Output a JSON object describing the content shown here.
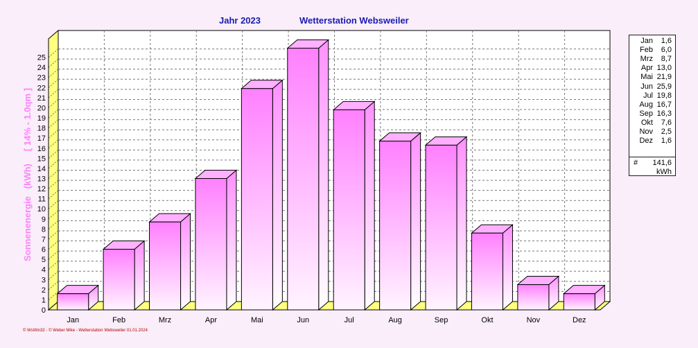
{
  "header": {
    "year_label": "Jahr  2023",
    "station": "Wetterstation Websweiler"
  },
  "chart_data": {
    "type": "bar",
    "title": "Jahr  2023   Wetterstation Websweiler",
    "ylabel": "Sonnenenergie   (kWh)     [ 14% - 1.0qm ]",
    "categories": [
      "Jan",
      "Feb",
      "Mrz",
      "Apr",
      "Mai",
      "Jun",
      "Jul",
      "Aug",
      "Sep",
      "Okt",
      "Nov",
      "Dez"
    ],
    "values": [
      1.6,
      6.0,
      8.7,
      13.0,
      21.9,
      25.9,
      19.8,
      16.7,
      16.3,
      7.6,
      2.5,
      1.6
    ],
    "ylim": [
      0,
      26
    ],
    "yticks": [
      "0",
      "1",
      "2",
      "3",
      "4",
      "5",
      "6",
      "7",
      "8",
      "9",
      "10",
      "11",
      "12",
      "13",
      "14",
      "15",
      "16",
      "17",
      "18",
      "19",
      "20",
      "21",
      "22",
      "23",
      "24",
      "25"
    ],
    "grid": true,
    "bar_color": "#ff80ff",
    "wall_color": "#ffff80"
  },
  "legend": {
    "rows": [
      {
        "month": "Jan",
        "value": "1,6"
      },
      {
        "month": "Feb",
        "value": "6,0"
      },
      {
        "month": "Mrz",
        "value": "8,7"
      },
      {
        "month": "Apr",
        "value": "13,0"
      },
      {
        "month": "Mai",
        "value": "21,9"
      },
      {
        "month": "Jun",
        "value": "25,9"
      },
      {
        "month": "Jul",
        "value": "19,8"
      },
      {
        "month": "Aug",
        "value": "16,7"
      },
      {
        "month": "Sep",
        "value": "16,3"
      },
      {
        "month": "Okt",
        "value": "7,6"
      },
      {
        "month": "Nov",
        "value": "2,5"
      },
      {
        "month": "Dez",
        "value": "1,6"
      }
    ],
    "total_symbol": "#",
    "total": "141,6",
    "unit": "kWh"
  },
  "footer": "© WsWin32 - © Weber Mike - Wetterstation Websweiler  01.01.2024"
}
